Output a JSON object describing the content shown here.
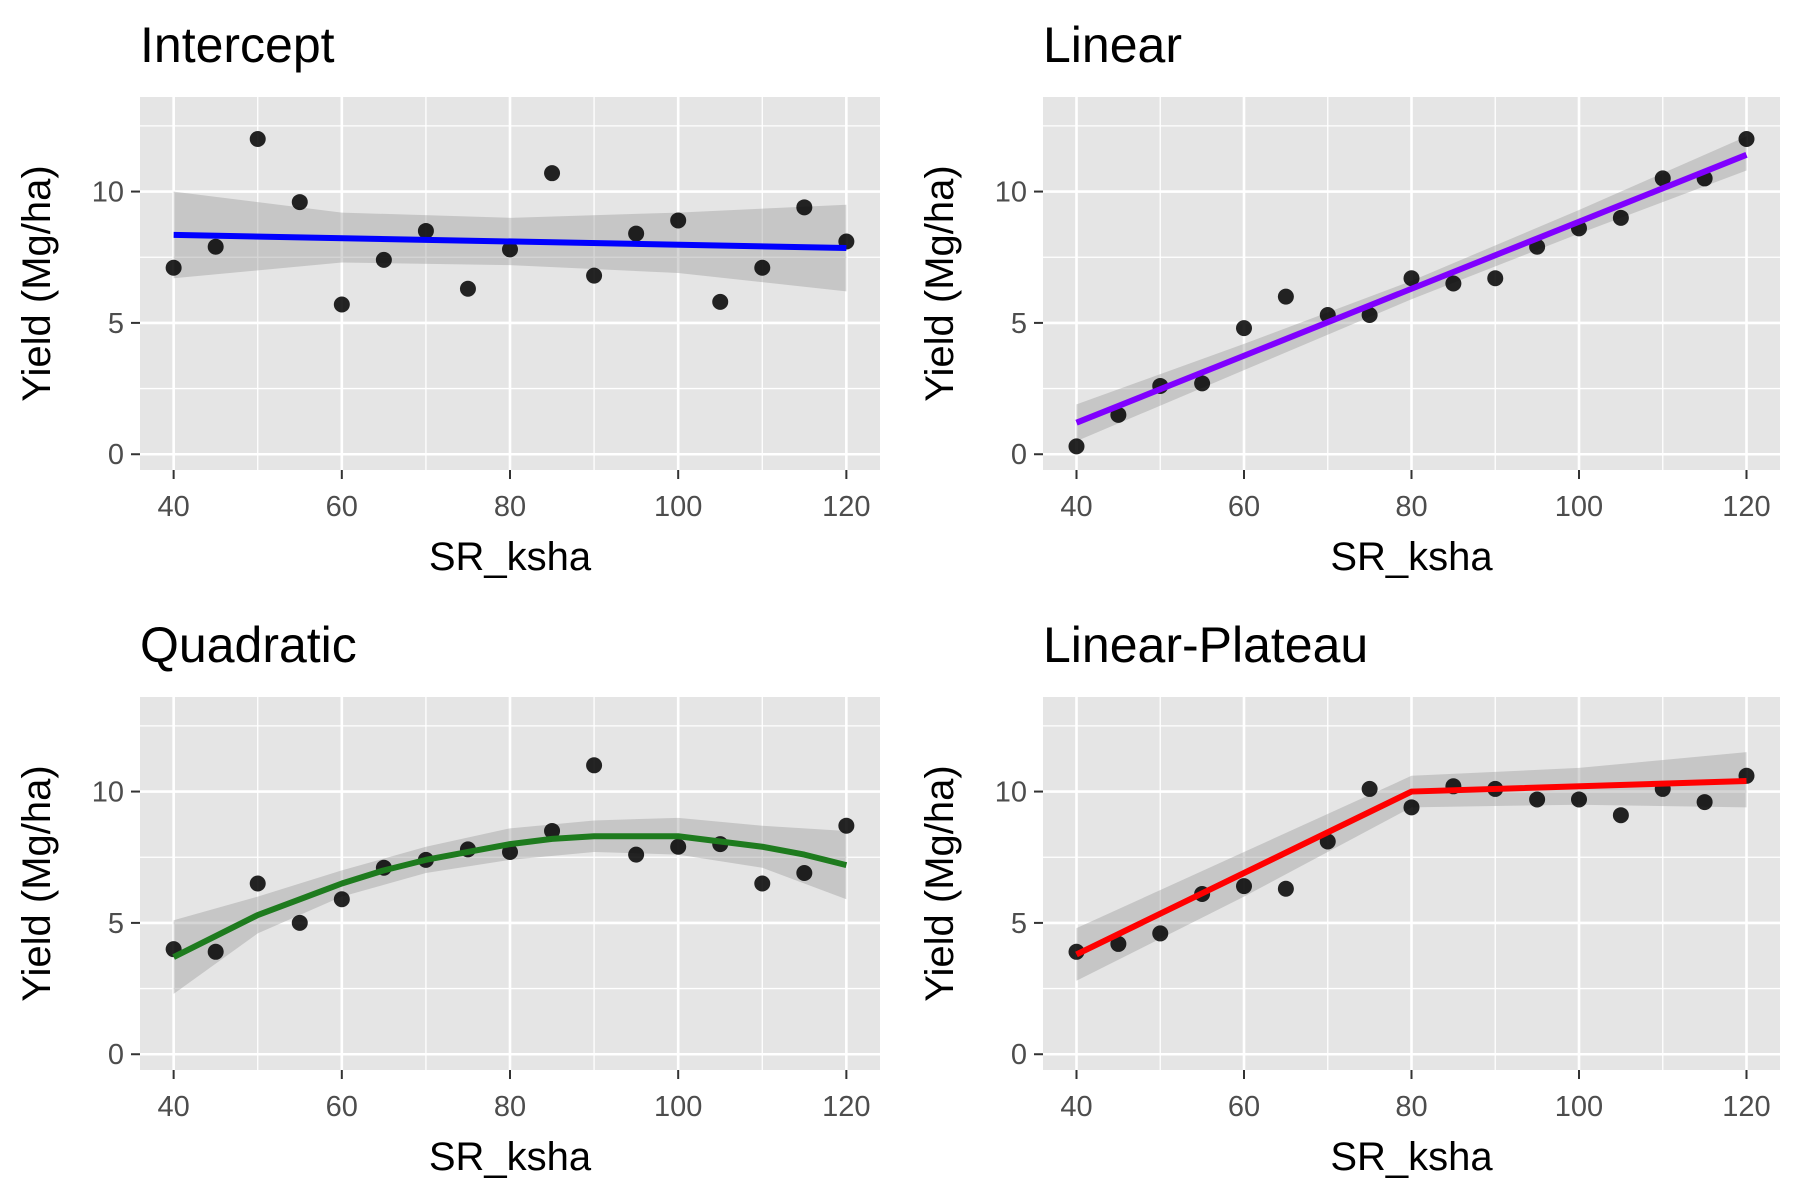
{
  "figure": {
    "panel_bg": "#e5e5e5",
    "grid_color": "#ffffff",
    "band_color": "#999999",
    "point_color": "#000000"
  },
  "chart_data": [
    {
      "type": "scatter",
      "title": "Intercept",
      "xlabel": "SR_ksha",
      "ylabel": "Yield (Mg/ha)",
      "xlim": [
        36,
        124
      ],
      "ylim": [
        -0.6,
        13.6
      ],
      "xticks": [
        40,
        60,
        80,
        100,
        120
      ],
      "yticks": [
        0,
        5,
        10
      ],
      "grid": true,
      "line_color": "#0000ff",
      "points": {
        "x": [
          40,
          45,
          50,
          55,
          60,
          65,
          70,
          75,
          80,
          85,
          90,
          95,
          100,
          105,
          110,
          115,
          120
        ],
        "y": [
          7.1,
          7.9,
          12.0,
          9.6,
          5.7,
          7.4,
          8.5,
          6.3,
          7.8,
          10.7,
          6.8,
          8.4,
          8.9,
          5.8,
          7.1,
          9.4,
          8.1
        ]
      },
      "fit": {
        "x": [
          40,
          120
        ],
        "y": [
          8.35,
          7.85
        ]
      },
      "ci": {
        "x": [
          40,
          60,
          80,
          100,
          120
        ],
        "lower": [
          6.7,
          7.3,
          7.2,
          6.9,
          6.2
        ],
        "upper": [
          10.0,
          9.2,
          9.0,
          9.2,
          9.5
        ]
      }
    },
    {
      "type": "scatter",
      "title": "Linear",
      "xlabel": "SR_ksha",
      "ylabel": "Yield (Mg/ha)",
      "xlim": [
        36,
        124
      ],
      "ylim": [
        -0.6,
        13.6
      ],
      "xticks": [
        40,
        60,
        80,
        100,
        120
      ],
      "yticks": [
        0,
        5,
        10
      ],
      "grid": true,
      "line_color": "#8000ff",
      "points": {
        "x": [
          40,
          45,
          50,
          55,
          60,
          65,
          70,
          75,
          80,
          85,
          90,
          95,
          100,
          105,
          110,
          115,
          120
        ],
        "y": [
          0.3,
          1.5,
          2.6,
          2.7,
          4.8,
          6.0,
          5.3,
          5.3,
          6.7,
          6.5,
          6.7,
          7.9,
          8.6,
          9.0,
          10.5,
          10.5,
          12.0
        ]
      },
      "fit": {
        "x": [
          40,
          120
        ],
        "y": [
          1.2,
          11.4
        ]
      },
      "ci": {
        "x": [
          40,
          60,
          80,
          100,
          120
        ],
        "lower": [
          0.5,
          3.2,
          5.9,
          8.4,
          10.8
        ],
        "upper": [
          1.9,
          4.2,
          6.6,
          9.3,
          12.1
        ]
      }
    },
    {
      "type": "scatter",
      "title": "Quadratic",
      "xlabel": "SR_ksha",
      "ylabel": "Yield (Mg/ha)",
      "xlim": [
        36,
        124
      ],
      "ylim": [
        -0.6,
        13.6
      ],
      "xticks": [
        40,
        60,
        80,
        100,
        120
      ],
      "yticks": [
        0,
        5,
        10
      ],
      "grid": true,
      "line_color": "#1e7b1e",
      "points": {
        "x": [
          40,
          45,
          50,
          55,
          60,
          65,
          70,
          75,
          80,
          85,
          90,
          95,
          100,
          105,
          110,
          115,
          120
        ],
        "y": [
          4.0,
          3.9,
          6.5,
          5.0,
          5.9,
          7.1,
          7.4,
          7.8,
          7.7,
          8.5,
          11.0,
          7.6,
          7.9,
          8.0,
          6.5,
          6.9,
          8.7
        ]
      },
      "fit": {
        "x": [
          40,
          45,
          50,
          55,
          60,
          65,
          70,
          75,
          80,
          85,
          90,
          95,
          100,
          105,
          110,
          115,
          120
        ],
        "y": [
          3.7,
          4.5,
          5.3,
          5.9,
          6.5,
          7.0,
          7.4,
          7.7,
          8.0,
          8.2,
          8.3,
          8.3,
          8.3,
          8.1,
          7.9,
          7.6,
          7.2
        ]
      },
      "ci": {
        "x": [
          40,
          50,
          60,
          70,
          80,
          90,
          100,
          110,
          120
        ],
        "lower": [
          2.3,
          4.6,
          6.0,
          6.9,
          7.4,
          7.7,
          7.6,
          7.1,
          5.9
        ],
        "upper": [
          5.1,
          6.0,
          7.0,
          7.9,
          8.6,
          8.9,
          9.0,
          8.7,
          8.5
        ]
      }
    },
    {
      "type": "scatter",
      "title": "Linear-Plateau",
      "xlabel": "SR_ksha",
      "ylabel": "Yield (Mg/ha)",
      "xlim": [
        36,
        124
      ],
      "ylim": [
        -0.6,
        13.6
      ],
      "xticks": [
        40,
        60,
        80,
        100,
        120
      ],
      "yticks": [
        0,
        5,
        10
      ],
      "grid": true,
      "line_color": "#ff0000",
      "points": {
        "x": [
          40,
          45,
          50,
          55,
          60,
          65,
          70,
          75,
          80,
          85,
          90,
          95,
          100,
          105,
          110,
          115,
          120
        ],
        "y": [
          3.9,
          4.2,
          4.6,
          6.1,
          6.4,
          6.3,
          8.1,
          10.1,
          9.4,
          10.2,
          10.1,
          9.7,
          9.7,
          9.1,
          10.1,
          9.6,
          10.6
        ]
      },
      "fit": {
        "x": [
          40,
          80,
          120
        ],
        "y": [
          3.8,
          10.0,
          10.4
        ]
      },
      "ci": {
        "x": [
          40,
          60,
          80,
          100,
          120
        ],
        "lower": [
          2.8,
          6.0,
          9.4,
          9.5,
          9.4
        ],
        "upper": [
          4.8,
          7.7,
          10.6,
          10.9,
          11.5
        ]
      }
    }
  ]
}
